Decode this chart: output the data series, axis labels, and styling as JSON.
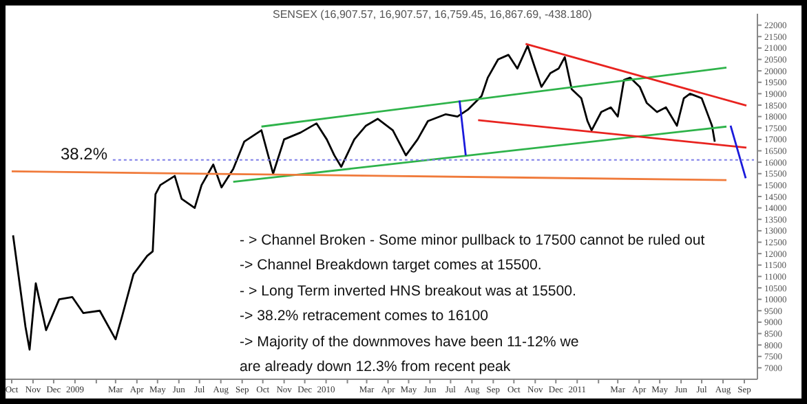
{
  "chart_data": {
    "type": "line",
    "title": "SENSEX (16,907.57, 16,907.57, 16,759.45, 16,867.69, -438.180)",
    "xlim": [
      "2008-09-22",
      "2011-09-20"
    ],
    "ylim": [
      6500,
      22500
    ],
    "yticks": [
      7000,
      7500,
      8000,
      8500,
      9000,
      9500,
      10000,
      10500,
      11000,
      11500,
      12000,
      12500,
      13000,
      13500,
      14000,
      14500,
      15000,
      15500,
      16000,
      16500,
      17000,
      17500,
      18000,
      18500,
      19000,
      19500,
      20000,
      20500,
      21000,
      21500,
      22000
    ],
    "xticks": [
      {
        "value": "2008-10-01",
        "label": "Oct"
      },
      {
        "value": "2008-11-01",
        "label": "Nov"
      },
      {
        "value": "2008-12-01",
        "label": "Dec"
      },
      {
        "value": "2009-01-01",
        "label": "2009"
      },
      {
        "value": "2009-02-01",
        "label": null
      },
      {
        "value": "2009-03-01",
        "label": "Mar"
      },
      {
        "value": "2009-04-01",
        "label": "Apr"
      },
      {
        "value": "2009-05-01",
        "label": "May"
      },
      {
        "value": "2009-06-01",
        "label": "Jun"
      },
      {
        "value": "2009-07-01",
        "label": "Jul"
      },
      {
        "value": "2009-08-01",
        "label": "Aug"
      },
      {
        "value": "2009-09-01",
        "label": "Sep"
      },
      {
        "value": "2009-10-01",
        "label": "Oct"
      },
      {
        "value": "2009-11-01",
        "label": "Nov"
      },
      {
        "value": "2009-12-01",
        "label": "Dec"
      },
      {
        "value": "2010-01-01",
        "label": "2010"
      },
      {
        "value": "2010-02-01",
        "label": null
      },
      {
        "value": "2010-03-01",
        "label": "Mar"
      },
      {
        "value": "2010-04-01",
        "label": "Apr"
      },
      {
        "value": "2010-05-01",
        "label": "May"
      },
      {
        "value": "2010-06-01",
        "label": "Jun"
      },
      {
        "value": "2010-07-01",
        "label": "Jul"
      },
      {
        "value": "2010-08-01",
        "label": "Aug"
      },
      {
        "value": "2010-09-01",
        "label": "Sep"
      },
      {
        "value": "2010-10-01",
        "label": "Oct"
      },
      {
        "value": "2010-11-01",
        "label": "Nov"
      },
      {
        "value": "2010-12-01",
        "label": "Dec"
      },
      {
        "value": "2011-01-01",
        "label": "2011"
      },
      {
        "value": "2011-02-01",
        "label": null
      },
      {
        "value": "2011-03-01",
        "label": "Mar"
      },
      {
        "value": "2011-04-01",
        "label": "Apr"
      },
      {
        "value": "2011-05-01",
        "label": "May"
      },
      {
        "value": "2011-06-01",
        "label": "Jun"
      },
      {
        "value": "2011-07-01",
        "label": "Jul"
      },
      {
        "value": "2011-08-01",
        "label": "Aug"
      },
      {
        "value": "2011-09-01",
        "label": "Sep"
      }
    ],
    "series": [
      {
        "color": "#000000",
        "x": [
          "2008-10-03",
          "2008-10-21",
          "2008-10-27",
          "2008-11-05",
          "2008-11-20",
          "2008-12-09",
          "2008-12-28",
          "2009-01-13",
          "2009-02-06",
          "2009-03-01",
          "2009-03-10",
          "2009-03-27",
          "2009-04-16",
          "2009-04-24",
          "2009-04-28",
          "2009-05-05",
          "2009-05-26",
          "2009-06-05",
          "2009-06-24",
          "2009-07-04",
          "2009-07-21",
          "2009-08-02",
          "2009-08-19",
          "2009-09-04",
          "2009-09-29",
          "2009-10-16",
          "2009-11-01",
          "2009-11-25",
          "2009-12-18",
          "2010-01-02",
          "2010-01-13",
          "2010-01-23",
          "2010-02-11",
          "2010-02-28",
          "2010-03-17",
          "2010-04-08",
          "2010-04-27",
          "2010-05-14",
          "2010-05-29",
          "2010-06-24",
          "2010-07-11",
          "2010-07-26",
          "2010-08-15",
          "2010-08-24",
          "2010-09-08",
          "2010-09-23",
          "2010-10-06",
          "2010-10-21",
          "2010-11-01",
          "2010-11-10",
          "2010-11-23",
          "2010-12-05",
          "2010-12-14",
          "2010-12-24",
          "2011-01-07",
          "2011-01-16",
          "2011-01-22",
          "2011-02-05",
          "2011-02-19",
          "2011-03-01",
          "2011-03-10",
          "2011-03-19",
          "2011-04-02",
          "2011-04-12",
          "2011-04-27",
          "2011-05-10",
          "2011-05-26",
          "2011-06-05",
          "2011-06-14",
          "2011-07-01",
          "2011-07-11",
          "2011-07-16",
          "2011-07-20"
        ],
        "values": [
          12800,
          8800,
          7800,
          10700,
          8650,
          10000,
          10100,
          9400,
          9500,
          8250,
          9200,
          11100,
          11900,
          12100,
          14600,
          15000,
          15400,
          14400,
          14000,
          15000,
          15900,
          14900,
          15700,
          16900,
          17400,
          15500,
          17000,
          17300,
          17700,
          17000,
          16300,
          15800,
          17000,
          17600,
          17900,
          17400,
          16300,
          17000,
          17800,
          18100,
          18000,
          18300,
          18900,
          19700,
          20500,
          20700,
          20100,
          21100,
          20100,
          19300,
          19900,
          20100,
          20600,
          19200,
          18800,
          17800,
          17400,
          18200,
          18400,
          18000,
          19600,
          19700,
          19300,
          18600,
          18200,
          18400,
          17600,
          18800,
          19000,
          18800,
          18000,
          17600,
          16900
        ]
      },
      {
        "color": "#2eb34a",
        "x": [
          "2009-09-29",
          "2011-08-06"
        ],
        "values": [
          17560,
          20140
        ]
      },
      {
        "color": "#2eb34a",
        "x": [
          "2009-08-19",
          "2011-08-06"
        ],
        "values": [
          15140,
          17560
        ]
      },
      {
        "color": "#e8231f",
        "x": [
          "2010-10-18",
          "2011-09-04"
        ],
        "values": [
          21180,
          18480
        ]
      },
      {
        "color": "#e8231f",
        "x": [
          "2010-08-10",
          "2011-09-04"
        ],
        "values": [
          17840,
          16640
        ]
      },
      {
        "color": "#1a1adb",
        "x": [
          "2010-07-14",
          "2010-07-23"
        ],
        "values": [
          18700,
          16300
        ]
      },
      {
        "color": "#1a1adb",
        "x": [
          "2011-08-12",
          "2011-09-03"
        ],
        "values": [
          17600,
          15300
        ]
      },
      {
        "color": "#f07a3a",
        "x": [
          "2008-10-01",
          "2011-08-06"
        ],
        "values": [
          15600,
          15220
        ]
      },
      {
        "color": "#7d7de8",
        "line_style": "dotted",
        "x": [
          "2009-02-25",
          "2011-09-15"
        ],
        "values": [
          16100,
          16100
        ]
      }
    ],
    "annotations": [
      "38.2%",
      "- > Channel Broken - Some minor pullback to 17500 cannot be ruled out",
      "-> Channel Breakdown target comes at 15500.",
      "- > Long Term inverted HNS breakout was at 15500.",
      "-> 38.2% retracement comes to 16100",
      "-> Majority of the downmoves have been 11-12% we",
      "are already down 12.3% from recent peak"
    ]
  }
}
